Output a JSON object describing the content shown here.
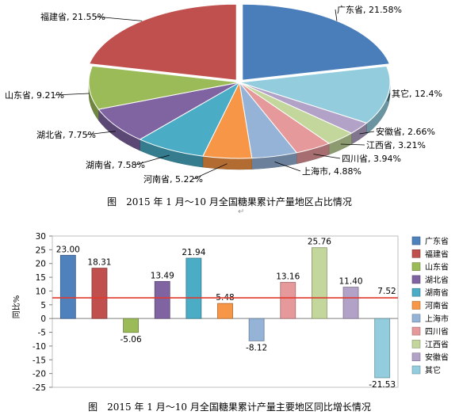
{
  "chart_data": [
    {
      "type": "pie",
      "caption": "图　2015 年 1 月～10 月全国糖果累计产量地区占比情况",
      "slices": [
        {
          "name": "广东省",
          "value": 21.58,
          "label": "广东省, 21.58%",
          "color": "#4a7ebb"
        },
        {
          "name": "其它",
          "value": 12.4,
          "label": "其它, 12.4%",
          "color": "#93cddd"
        },
        {
          "name": "安徽省",
          "value": 2.66,
          "label": "安徽省, 2.66%",
          "color": "#b3a2c7"
        },
        {
          "name": "江西省",
          "value": 3.21,
          "label": "江西省, 3.21%",
          "color": "#c3d69b"
        },
        {
          "name": "四川省",
          "value": 3.94,
          "label": "四川省, 3.94%",
          "color": "#e6999b"
        },
        {
          "name": "上海市",
          "value": 4.88,
          "label": "上海市, 4.88%",
          "color": "#95b3d7"
        },
        {
          "name": "河南省",
          "value": 5.22,
          "label": "河南省, 5.22%",
          "color": "#f79646"
        },
        {
          "name": "湖南省",
          "value": 7.58,
          "label": "湖南省, 7.58%",
          "color": "#4bacc6"
        },
        {
          "name": "湖北省",
          "value": 7.75,
          "label": "湖北省, 7.75%",
          "color": "#8064a2"
        },
        {
          "name": "山东省",
          "value": 9.21,
          "label": "山东省, 9.21%",
          "color": "#9bbb59"
        },
        {
          "name": "福建省",
          "value": 21.55,
          "label": "福建省, 21.55%",
          "color": "#c0504d"
        }
      ]
    },
    {
      "type": "bar",
      "caption": "图　2015 年 1 月～10 月全国糖果累计产量主要地区同比增长情况",
      "ylabel": "同比%",
      "ylim": [
        -25,
        30
      ],
      "yticks": [
        "30",
        "25",
        "20",
        "15",
        "10",
        "5",
        "0",
        "-5",
        "-10",
        "-15",
        "-20",
        "-25"
      ],
      "categories": [
        "广东省",
        "福建省",
        "山东省",
        "湖北省",
        "湖南省",
        "河南省",
        "上海市",
        "四川省",
        "江西省",
        "安徽省",
        "其它"
      ],
      "values": [
        23.0,
        18.31,
        -5.06,
        13.49,
        21.94,
        5.48,
        -8.12,
        13.16,
        25.76,
        11.4,
        -21.53
      ],
      "value_labels": [
        "23.00",
        "18.31",
        "-5.06",
        "13.49",
        "21.94",
        "5.48",
        "-8.12",
        "13.16",
        "25.76",
        "11.40",
        "-21.53"
      ],
      "colors": [
        "#4f81bd",
        "#c0504d",
        "#9bbb59",
        "#8064a2",
        "#4bacc6",
        "#f79646",
        "#95b3d7",
        "#e6999b",
        "#c3d69b",
        "#b3a2c7",
        "#93cddd"
      ],
      "reference_line": {
        "value": 7.52,
        "label": "7.52",
        "color": "#e03a2e"
      },
      "legend": {
        "position": "right",
        "entries": [
          "广东省",
          "福建省",
          "山东省",
          "湖北省",
          "湖南省",
          "河南省",
          "上海市",
          "四川省",
          "江西省",
          "安徽省",
          "其它"
        ]
      }
    }
  ]
}
